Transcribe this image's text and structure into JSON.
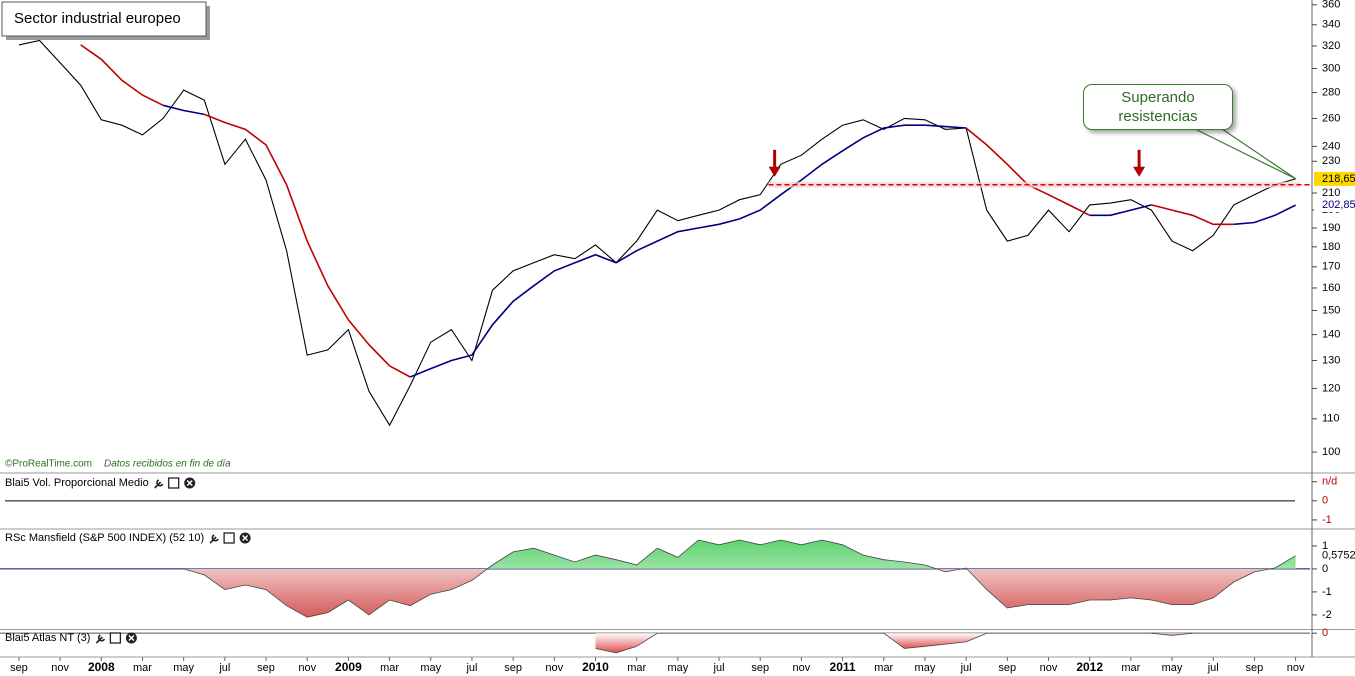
{
  "chart_data": [
    {
      "type": "line",
      "title": "Sector industrial europeo",
      "log_scale": true,
      "source": "©ProRealTime.com",
      "note": "Datos recibidos en fin de día",
      "annotation": "Superando resistencias",
      "x": [
        0,
        1,
        2,
        3,
        4,
        5,
        6,
        7,
        8,
        9,
        10,
        11,
        12,
        13,
        14,
        15,
        16,
        17,
        18,
        19,
        20,
        21,
        22,
        23,
        24,
        25,
        26,
        27,
        28,
        29,
        30,
        31,
        32,
        33,
        34,
        35,
        36,
        37,
        38,
        39,
        40,
        41,
        42,
        43,
        44,
        45,
        46,
        47,
        48,
        49,
        50,
        51,
        52,
        53,
        54,
        55,
        56,
        57,
        58,
        59,
        60,
        61,
        62
      ],
      "series": [
        {
          "color": "#000000",
          "values": [
            321,
            325,
            305,
            286,
            259,
            255,
            248,
            260,
            282,
            274,
            228,
            245,
            218,
            178,
            132,
            134,
            142,
            119,
            108,
            121,
            137,
            142,
            130,
            159,
            168,
            172,
            176,
            174,
            181,
            172,
            183,
            200,
            194,
            197,
            200,
            206,
            209,
            228,
            234,
            245,
            255,
            259,
            252,
            260,
            259,
            252,
            253,
            200,
            183,
            186,
            200,
            188,
            203,
            204,
            206,
            200,
            183,
            178,
            186,
            203,
            209,
            215,
            218.65
          ]
        },
        {
          "color": "#c00000",
          "values": [
            null,
            null,
            null,
            321,
            308,
            290,
            278,
            270,
            null,
            263,
            257,
            252,
            241,
            215,
            183,
            161,
            146,
            136,
            128,
            124,
            null,
            null,
            null,
            null,
            null,
            null,
            null,
            null,
            null,
            null,
            null,
            null,
            null,
            null,
            null,
            null,
            null,
            null,
            null,
            null,
            null,
            null,
            null,
            null,
            null,
            null,
            253,
            241,
            228,
            215,
            209,
            203,
            197,
            null,
            null,
            203,
            200,
            197,
            192,
            192,
            null,
            null,
            null
          ]
        },
        {
          "color": "#000080",
          "values": [
            null,
            null,
            null,
            null,
            null,
            null,
            null,
            270,
            266,
            263,
            null,
            null,
            null,
            null,
            null,
            null,
            null,
            null,
            null,
            124,
            127,
            130,
            132,
            144,
            154,
            161,
            168,
            172,
            176,
            172,
            178,
            183,
            188,
            190,
            192,
            195,
            200,
            209,
            218,
            228,
            237,
            246,
            253,
            255,
            255,
            254,
            253,
            null,
            null,
            null,
            null,
            null,
            197,
            197,
            200,
            203,
            null,
            null,
            null,
            192,
            193,
            197,
            202.85
          ]
        }
      ],
      "xlim": [
        -0.92,
        62.7
      ],
      "xticks": [
        {
          "value": 0,
          "label": "sep"
        },
        {
          "value": 2,
          "label": "nov"
        },
        {
          "value": 4,
          "label": "2008"
        },
        {
          "value": 6,
          "label": "mar"
        },
        {
          "value": 8,
          "label": "may"
        },
        {
          "value": 10,
          "label": "jul"
        },
        {
          "value": 12,
          "label": "sep"
        },
        {
          "value": 14,
          "label": "nov"
        },
        {
          "value": 16,
          "label": "2009"
        },
        {
          "value": 18,
          "label": "mar"
        },
        {
          "value": 20,
          "label": "may"
        },
        {
          "value": 22,
          "label": "jul"
        },
        {
          "value": 24,
          "label": "sep"
        },
        {
          "value": 26,
          "label": "nov"
        },
        {
          "value": 28,
          "label": "2010"
        },
        {
          "value": 30,
          "label": "mar"
        },
        {
          "value": 32,
          "label": "may"
        },
        {
          "value": 34,
          "label": "jul"
        },
        {
          "value": 36,
          "label": "sep"
        },
        {
          "value": 38,
          "label": "nov"
        },
        {
          "value": 40,
          "label": "2011"
        },
        {
          "value": 42,
          "label": "mar"
        },
        {
          "value": 44,
          "label": "may"
        },
        {
          "value": 46,
          "label": "jul"
        },
        {
          "value": 48,
          "label": "sep"
        },
        {
          "value": 50,
          "label": "nov"
        },
        {
          "value": 52,
          "label": "2012"
        },
        {
          "value": 54,
          "label": "mar"
        },
        {
          "value": 56,
          "label": "may"
        },
        {
          "value": 58,
          "label": "jul"
        },
        {
          "value": 60,
          "label": "sep"
        },
        {
          "value": 62,
          "label": "nov"
        }
      ],
      "ylim": [
        95,
        365
      ],
      "yticks": [
        100,
        110,
        120,
        130,
        140,
        150,
        160,
        170,
        180,
        190,
        200,
        210,
        230,
        240,
        260,
        280,
        300,
        320,
        340,
        360
      ],
      "resistance": 215,
      "resistance_from": 36.4,
      "resistance_color": "#e00000",
      "arrows_x": [
        36.7,
        54.4
      ],
      "arrow_color": "#b00000",
      "price_tags": [
        {
          "value": 218.65,
          "label": "218,65",
          "color": "#ffd800",
          "text_color": "#000000"
        },
        {
          "value": 202.85,
          "label": "202,85",
          "color": "#ffffff",
          "text_color": "#000080"
        }
      ]
    },
    {
      "type": "line",
      "title": "Blai5 Vol. Proporcional Medio",
      "ylim": [
        -1.37,
        1.3
      ],
      "yticks": [
        {
          "value": 1,
          "label": "n/d"
        },
        0,
        -1
      ],
      "reference_line": 0,
      "ytick_color": "#c00000"
    },
    {
      "type": "area",
      "title": "RSc Mansfield (S&P 500 INDEX) (52 10)",
      "x": [
        0,
        1,
        2,
        3,
        4,
        5,
        6,
        7,
        8,
        9,
        10,
        11,
        12,
        13,
        14,
        15,
        16,
        17,
        18,
        19,
        20,
        21,
        22,
        23,
        24,
        25,
        26,
        27,
        28,
        29,
        30,
        31,
        32,
        33,
        34,
        35,
        36,
        37,
        38,
        39,
        40,
        41,
        42,
        43,
        44,
        45,
        46,
        47,
        48,
        49,
        50,
        51,
        52,
        53,
        54,
        55,
        56,
        57,
        58,
        59,
        60,
        61,
        62
      ],
      "series": [
        {
          "color": "#5fd36f",
          "negative_color": "#d65a5a",
          "values": [
            null,
            null,
            null,
            null,
            null,
            null,
            null,
            null,
            0,
            -0.26,
            -0.9,
            -0.7,
            -0.9,
            -1.6,
            -2.1,
            -1.9,
            -1.35,
            -2,
            -1.35,
            -1.6,
            -1.1,
            -0.9,
            -0.5,
            0.17,
            0.74,
            0.9,
            0.6,
            0.3,
            0.6,
            0.4,
            0.17,
            0.9,
            0.5,
            1.26,
            1.05,
            1.26,
            1.05,
            1.26,
            1.05,
            1.26,
            1.05,
            0.6,
            0.4,
            0.3,
            0.17,
            -0.13,
            0.04,
            -0.9,
            -1.7,
            -1.55,
            -1.55,
            -1.55,
            -1.35,
            -1.35,
            -1.26,
            -1.35,
            -1.55,
            -1.55,
            -1.26,
            -0.57,
            -0.13,
            0.04,
            0.5752
          ]
        }
      ],
      "ylim": [
        -2.57,
        1.65
      ],
      "yticks": [
        1,
        0,
        -1,
        -2
      ],
      "zero_line_color": "#000080",
      "last_tag": {
        "value": 0.5752,
        "label": "0,5752"
      }
    },
    {
      "type": "area",
      "title": "Blai5 Atlas NT (3)",
      "x": [
        0,
        1,
        2,
        3,
        4,
        5,
        6,
        7,
        8,
        9,
        10,
        11,
        12,
        13,
        14,
        15,
        16,
        17,
        18,
        19,
        20,
        21,
        22,
        23,
        24,
        25,
        26,
        27,
        28,
        29,
        30,
        31,
        32,
        33,
        34,
        35,
        36,
        37,
        38,
        39,
        40,
        41,
        42,
        43,
        44,
        45,
        46,
        47,
        48,
        49,
        50,
        51,
        52,
        53,
        54,
        55,
        56,
        57,
        58,
        59,
        60,
        61,
        62
      ],
      "series": [
        {
          "color": "#5fd36f",
          "negative_color": "#e05050",
          "values": [
            null,
            null,
            null,
            null,
            null,
            null,
            null,
            null,
            null,
            null,
            null,
            null,
            null,
            null,
            null,
            null,
            null,
            null,
            null,
            null,
            null,
            null,
            null,
            null,
            null,
            null,
            null,
            null,
            -0.7,
            -0.9,
            -0.6,
            0,
            null,
            null,
            null,
            null,
            null,
            null,
            null,
            null,
            null,
            null,
            0,
            -0.7,
            -0.6,
            -0.5,
            -0.4,
            0,
            null,
            null,
            null,
            null,
            null,
            null,
            null,
            0,
            -0.1,
            0,
            null,
            null,
            null,
            null,
            null
          ]
        }
      ],
      "ylim": [
        -1,
        0.1
      ],
      "yticks": [
        0
      ],
      "zero_line_color": "#555555",
      "ytick_color": "#c00000"
    }
  ]
}
